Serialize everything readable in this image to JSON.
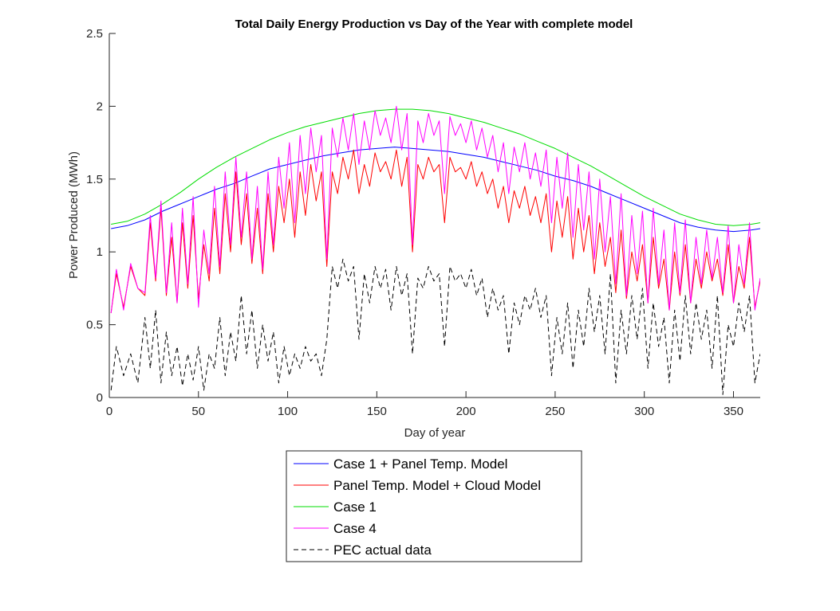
{
  "chart_data": {
    "type": "line",
    "title": "Total Daily Energy Production vs Day of the Year with complete model",
    "xlabel": "Day of year",
    "ylabel": "Power Produced (MWh)",
    "xlim": [
      0,
      365
    ],
    "ylim": [
      0,
      2.5
    ],
    "xticks": [
      0,
      50,
      100,
      150,
      200,
      250,
      300,
      350
    ],
    "yticks": [
      0,
      0.5,
      1,
      1.5,
      2,
      2.5
    ],
    "xtick_labels": [
      "0",
      "50",
      "100",
      "150",
      "200",
      "250",
      "300",
      "350"
    ],
    "ytick_labels": [
      "0",
      "0.5",
      "1",
      "1.5",
      "2",
      "2.5"
    ],
    "grid": false,
    "legend_position": "below-center",
    "series": [
      {
        "name": "Case 1 + Panel Temp. Model",
        "color": "#0000ff",
        "style": "solid",
        "x": [
          1,
          10,
          20,
          30,
          40,
          50,
          60,
          70,
          80,
          90,
          100,
          110,
          120,
          130,
          140,
          150,
          160,
          170,
          180,
          190,
          200,
          210,
          220,
          230,
          240,
          250,
          260,
          270,
          280,
          290,
          300,
          310,
          320,
          330,
          340,
          350,
          360,
          365
        ],
        "values": [
          1.16,
          1.18,
          1.22,
          1.28,
          1.33,
          1.38,
          1.43,
          1.47,
          1.52,
          1.57,
          1.6,
          1.63,
          1.66,
          1.68,
          1.7,
          1.71,
          1.72,
          1.71,
          1.7,
          1.69,
          1.67,
          1.65,
          1.62,
          1.59,
          1.56,
          1.52,
          1.49,
          1.45,
          1.4,
          1.35,
          1.3,
          1.25,
          1.2,
          1.17,
          1.15,
          1.14,
          1.15,
          1.16
        ]
      },
      {
        "name": "Panel Temp. Model + Cloud Model",
        "color": "#ff0000",
        "style": "solid",
        "x": [
          1,
          4,
          8,
          12,
          16,
          20,
          23,
          26,
          29,
          32,
          35,
          38,
          41,
          44,
          47,
          50,
          53,
          56,
          59,
          62,
          65,
          68,
          71,
          74,
          77,
          80,
          83,
          86,
          89,
          92,
          95,
          98,
          101,
          104,
          107,
          110,
          113,
          116,
          119,
          122,
          125,
          128,
          131,
          134,
          137,
          140,
          143,
          146,
          149,
          152,
          155,
          158,
          161,
          164,
          167,
          170,
          173,
          176,
          179,
          182,
          185,
          188,
          191,
          194,
          197,
          200,
          203,
          206,
          209,
          212,
          215,
          218,
          221,
          224,
          227,
          230,
          233,
          236,
          239,
          242,
          245,
          248,
          251,
          254,
          257,
          260,
          263,
          266,
          269,
          272,
          275,
          278,
          281,
          284,
          287,
          290,
          293,
          296,
          299,
          302,
          305,
          308,
          311,
          314,
          317,
          320,
          323,
          326,
          329,
          332,
          335,
          338,
          341,
          344,
          347,
          350,
          353,
          356,
          359,
          362,
          365
        ],
        "values": [
          0.58,
          0.85,
          0.62,
          0.9,
          0.75,
          0.7,
          1.2,
          0.8,
          1.3,
          0.7,
          1.1,
          0.65,
          1.2,
          0.75,
          1.25,
          0.68,
          1.05,
          0.8,
          1.3,
          0.85,
          1.4,
          1.0,
          1.55,
          1.05,
          1.4,
          0.92,
          1.3,
          0.85,
          1.4,
          1.0,
          1.45,
          1.2,
          1.5,
          1.1,
          1.55,
          1.25,
          1.6,
          1.35,
          1.55,
          0.9,
          1.55,
          1.4,
          1.65,
          1.5,
          1.7,
          1.4,
          1.6,
          1.45,
          1.68,
          1.55,
          1.62,
          1.5,
          1.7,
          1.45,
          1.65,
          1.0,
          1.6,
          1.5,
          1.65,
          1.55,
          1.6,
          1.2,
          1.65,
          1.55,
          1.58,
          1.5,
          1.62,
          1.45,
          1.55,
          1.4,
          1.5,
          1.3,
          1.45,
          1.2,
          1.42,
          1.3,
          1.45,
          1.25,
          1.38,
          1.2,
          1.4,
          1.0,
          1.35,
          1.1,
          1.38,
          0.95,
          1.3,
          1.0,
          1.25,
          0.85,
          1.2,
          0.9,
          1.1,
          0.72,
          1.15,
          0.68,
          1.0,
          0.8,
          1.05,
          0.65,
          1.1,
          0.75,
          0.95,
          0.6,
          1.0,
          0.7,
          1.05,
          0.65,
          0.95,
          0.75,
          1.0,
          0.8,
          0.95,
          0.7,
          1.05,
          0.65,
          0.9,
          0.75,
          1.1,
          0.62,
          0.8
        ]
      },
      {
        "name": "Case 1",
        "color": "#00dd00",
        "style": "solid",
        "x": [
          1,
          10,
          20,
          30,
          40,
          50,
          60,
          70,
          80,
          90,
          100,
          110,
          120,
          130,
          140,
          150,
          160,
          170,
          180,
          190,
          200,
          210,
          220,
          230,
          240,
          250,
          260,
          270,
          280,
          290,
          300,
          310,
          320,
          330,
          340,
          350,
          360,
          365
        ],
        "values": [
          1.19,
          1.21,
          1.26,
          1.33,
          1.41,
          1.5,
          1.58,
          1.65,
          1.71,
          1.77,
          1.82,
          1.86,
          1.89,
          1.92,
          1.95,
          1.97,
          1.98,
          1.98,
          1.97,
          1.95,
          1.92,
          1.89,
          1.85,
          1.81,
          1.76,
          1.71,
          1.65,
          1.59,
          1.52,
          1.45,
          1.38,
          1.32,
          1.26,
          1.22,
          1.19,
          1.18,
          1.19,
          1.2
        ]
      },
      {
        "name": "Case 4",
        "color": "#ff00ff",
        "style": "solid",
        "x": [
          1,
          4,
          8,
          12,
          16,
          20,
          23,
          26,
          29,
          32,
          35,
          38,
          41,
          44,
          47,
          50,
          53,
          56,
          59,
          62,
          65,
          68,
          71,
          74,
          77,
          80,
          83,
          86,
          89,
          92,
          95,
          98,
          101,
          104,
          107,
          110,
          113,
          116,
          119,
          122,
          125,
          128,
          131,
          134,
          137,
          140,
          143,
          146,
          149,
          152,
          155,
          158,
          161,
          164,
          167,
          170,
          173,
          176,
          179,
          182,
          185,
          188,
          191,
          194,
          197,
          200,
          203,
          206,
          209,
          212,
          215,
          218,
          221,
          224,
          227,
          230,
          233,
          236,
          239,
          242,
          245,
          248,
          251,
          254,
          257,
          260,
          263,
          266,
          269,
          272,
          275,
          278,
          281,
          284,
          287,
          290,
          293,
          296,
          299,
          302,
          305,
          308,
          311,
          314,
          317,
          320,
          323,
          326,
          329,
          332,
          335,
          338,
          341,
          344,
          347,
          350,
          353,
          356,
          359,
          362,
          365
        ],
        "values": [
          0.58,
          0.88,
          0.6,
          0.92,
          0.75,
          0.72,
          1.25,
          0.82,
          1.35,
          0.72,
          1.2,
          0.65,
          1.3,
          0.78,
          1.38,
          0.62,
          1.15,
          0.85,
          1.45,
          0.9,
          1.55,
          1.05,
          1.65,
          1.1,
          1.55,
          0.95,
          1.45,
          0.88,
          1.55,
          1.05,
          1.65,
          1.3,
          1.75,
          1.2,
          1.8,
          1.4,
          1.85,
          1.55,
          1.8,
          0.95,
          1.85,
          1.65,
          1.92,
          1.7,
          1.95,
          1.6,
          1.9,
          1.7,
          1.97,
          1.8,
          1.92,
          1.75,
          2.0,
          1.7,
          1.95,
          1.05,
          1.9,
          1.75,
          1.95,
          1.8,
          1.9,
          1.4,
          1.93,
          1.8,
          1.88,
          1.75,
          1.9,
          1.7,
          1.85,
          1.65,
          1.8,
          1.55,
          1.75,
          1.4,
          1.72,
          1.55,
          1.75,
          1.5,
          1.68,
          1.45,
          1.7,
          1.2,
          1.65,
          1.3,
          1.68,
          1.1,
          1.6,
          1.15,
          1.55,
          0.95,
          1.5,
          1.0,
          1.38,
          0.78,
          1.4,
          0.7,
          1.25,
          0.85,
          1.28,
          0.65,
          1.3,
          0.78,
          1.15,
          0.6,
          1.2,
          0.72,
          1.22,
          0.65,
          1.1,
          0.78,
          1.15,
          0.82,
          1.1,
          0.72,
          1.18,
          0.65,
          1.05,
          0.78,
          1.2,
          0.6,
          0.82
        ]
      },
      {
        "name": "PEC actual data",
        "color": "#000000",
        "style": "dashed",
        "x": [
          1,
          4,
          8,
          12,
          16,
          20,
          23,
          26,
          29,
          32,
          35,
          38,
          41,
          44,
          47,
          50,
          53,
          56,
          59,
          62,
          65,
          68,
          71,
          74,
          77,
          80,
          83,
          86,
          89,
          92,
          95,
          98,
          101,
          104,
          107,
          110,
          113,
          116,
          119,
          122,
          125,
          128,
          131,
          134,
          137,
          140,
          143,
          146,
          149,
          152,
          155,
          158,
          161,
          164,
          167,
          170,
          173,
          176,
          179,
          182,
          185,
          188,
          191,
          194,
          197,
          200,
          203,
          206,
          209,
          212,
          215,
          218,
          221,
          224,
          227,
          230,
          233,
          236,
          239,
          242,
          245,
          248,
          251,
          254,
          257,
          260,
          263,
          266,
          269,
          272,
          275,
          278,
          281,
          284,
          287,
          290,
          293,
          296,
          299,
          302,
          305,
          308,
          311,
          314,
          317,
          320,
          323,
          326,
          329,
          332,
          335,
          338,
          341,
          344,
          347,
          350,
          353,
          356,
          359,
          362,
          365
        ],
        "values": [
          0.05,
          0.35,
          0.15,
          0.3,
          0.1,
          0.55,
          0.2,
          0.6,
          0.1,
          0.45,
          0.15,
          0.35,
          0.08,
          0.3,
          0.12,
          0.35,
          0.05,
          0.3,
          0.2,
          0.55,
          0.15,
          0.45,
          0.25,
          0.7,
          0.3,
          0.6,
          0.2,
          0.5,
          0.25,
          0.45,
          0.1,
          0.35,
          0.15,
          0.3,
          0.2,
          0.35,
          0.25,
          0.3,
          0.15,
          0.4,
          0.9,
          0.75,
          0.95,
          0.8,
          0.9,
          0.4,
          0.85,
          0.65,
          0.9,
          0.75,
          0.88,
          0.6,
          0.9,
          0.7,
          0.85,
          0.3,
          0.82,
          0.75,
          0.9,
          0.8,
          0.85,
          0.35,
          0.9,
          0.8,
          0.85,
          0.75,
          0.88,
          0.7,
          0.82,
          0.55,
          0.75,
          0.6,
          0.7,
          0.3,
          0.65,
          0.5,
          0.7,
          0.6,
          0.75,
          0.55,
          0.7,
          0.15,
          0.55,
          0.3,
          0.65,
          0.2,
          0.6,
          0.35,
          0.75,
          0.45,
          0.7,
          0.3,
          0.85,
          0.1,
          0.6,
          0.3,
          0.7,
          0.4,
          0.75,
          0.2,
          0.65,
          0.35,
          0.55,
          0.1,
          0.6,
          0.25,
          0.7,
          0.3,
          0.65,
          0.4,
          0.6,
          0.2,
          0.7,
          0.02,
          0.5,
          0.35,
          0.65,
          0.45,
          0.7,
          0.1,
          0.3
        ]
      }
    ]
  }
}
